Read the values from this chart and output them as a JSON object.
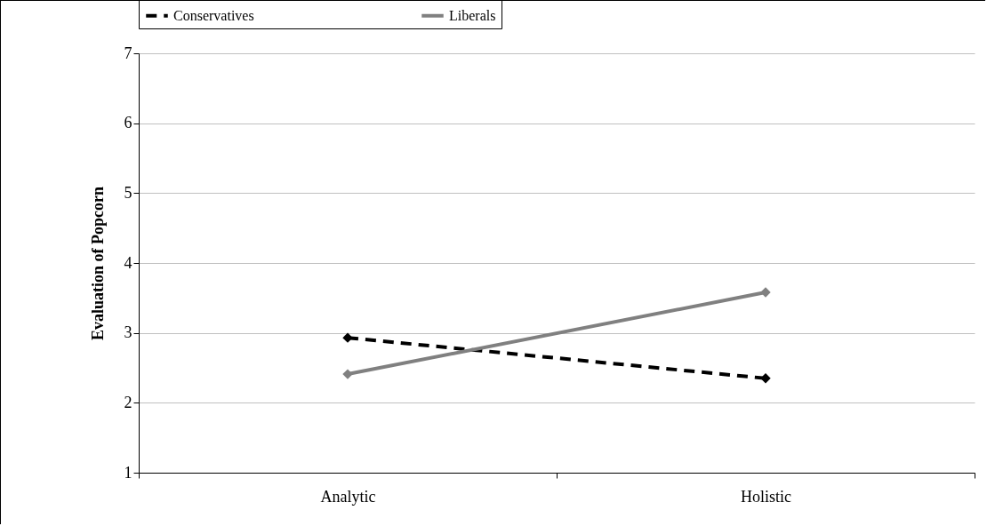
{
  "chart_data": {
    "type": "line",
    "ylabel": "Evaluation of Popcorn",
    "categories": [
      "Analytic",
      "Holistic"
    ],
    "series": [
      {
        "name": "Conservatives",
        "color": "#000000",
        "line_style": "dashed",
        "values": [
          2.93,
          2.35
        ]
      },
      {
        "name": "Liberals",
        "color": "#808080",
        "line_style": "solid",
        "values": [
          2.41,
          3.58
        ]
      }
    ],
    "ylim": [
      1,
      7
    ],
    "yticks": [
      1,
      2,
      3,
      4,
      5,
      6,
      7
    ],
    "grid": "y",
    "legend": "top",
    "marker": "diamond"
  }
}
